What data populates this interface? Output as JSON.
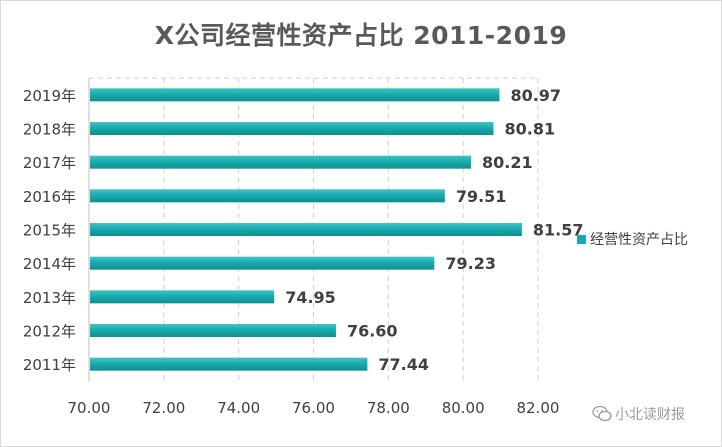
{
  "chart_data": {
    "type": "bar",
    "orientation": "horizontal",
    "title": "X公司经营性资产占比 2011-2019",
    "categories": [
      "2019年",
      "2018年",
      "2017年",
      "2016年",
      "2015年",
      "2014年",
      "2013年",
      "2012年",
      "2011年"
    ],
    "series": [
      {
        "name": "经营性资产占比",
        "values": [
          80.97,
          80.81,
          80.21,
          79.51,
          81.57,
          79.23,
          74.95,
          76.6,
          77.44
        ],
        "labels": [
          "80.97",
          "80.81",
          "80.21",
          "79.51",
          "81.57",
          "79.23",
          "74.95",
          "76.60",
          "77.44"
        ]
      }
    ],
    "xlim": [
      70,
      82
    ],
    "x_ticks": [
      "70.00",
      "72.00",
      "74.00",
      "76.00",
      "78.00",
      "80.00",
      "82.00"
    ],
    "xlabel": "",
    "ylabel": "",
    "gridlines": "vertical dashed",
    "legend_position": "right",
    "bar_color": "#17A8AA"
  },
  "watermark": {
    "text": "小北读财报",
    "icon": "wechat-icon"
  }
}
